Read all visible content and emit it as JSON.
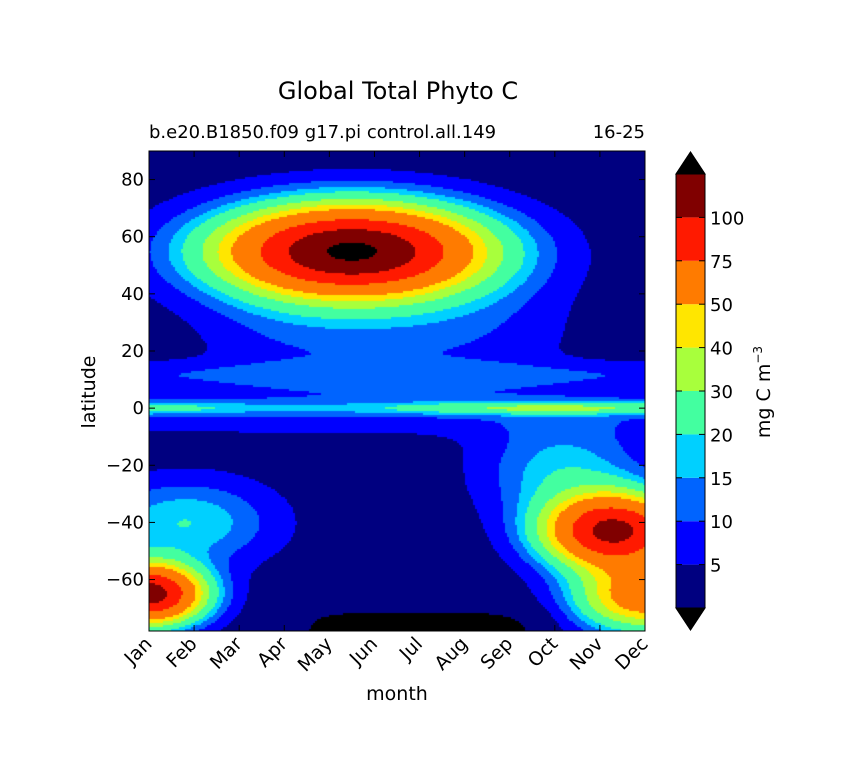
{
  "chart_data": {
    "type": "heatmap",
    "subtype": "filled-contour",
    "title": "Global Total Phyto C",
    "subtitle_left": "b.e20.B1850.f09 g17.pi control.all.149",
    "subtitle_right": "16-25",
    "xlabel": "month",
    "ylabel": "latitude",
    "x_tick_labels": [
      "Jan",
      "Feb",
      "Mar",
      "Apr",
      "May",
      "Jun",
      "Jul",
      "Aug",
      "Sep",
      "Oct",
      "Nov",
      "Dec"
    ],
    "y_ticks": [
      80,
      60,
      40,
      20,
      0,
      -20,
      -40,
      -60
    ],
    "ylim": [
      -78,
      90
    ],
    "colorbar": {
      "label": "mg C m",
      "label_superscript": "−3",
      "levels": [
        0,
        5,
        10,
        15,
        20,
        30,
        40,
        50,
        75,
        100,
        125
      ],
      "tick_labels": [
        "5",
        "10",
        "15",
        "20",
        "30",
        "40",
        "50",
        "75",
        "100"
      ],
      "extend": "both",
      "colors": [
        "#000080",
        "#0000ff",
        "#0064ff",
        "#00d0ff",
        "#43ffa0",
        "#a8ff3c",
        "#ffe600",
        "#ff7b00",
        "#ff1a00",
        "#800000"
      ],
      "under_color": "#000000",
      "over_color": "#000000"
    },
    "fields": {
      "north_bloom": {
        "peak_month_index": 4.5,
        "peak_latitude": 55,
        "peak_value": 130
      },
      "equatorial_band": {
        "latitude": 0,
        "value": 22
      },
      "south_bloom": {
        "peak_month_index": 10.3,
        "peak_latitude": -43,
        "peak_value": 105
      },
      "south_early_bloom": {
        "peak_month_index": 0,
        "peak_latitude": -65,
        "peak_value": 110
      },
      "northern_winter_value": 2,
      "polar_night_value": -1
    }
  }
}
